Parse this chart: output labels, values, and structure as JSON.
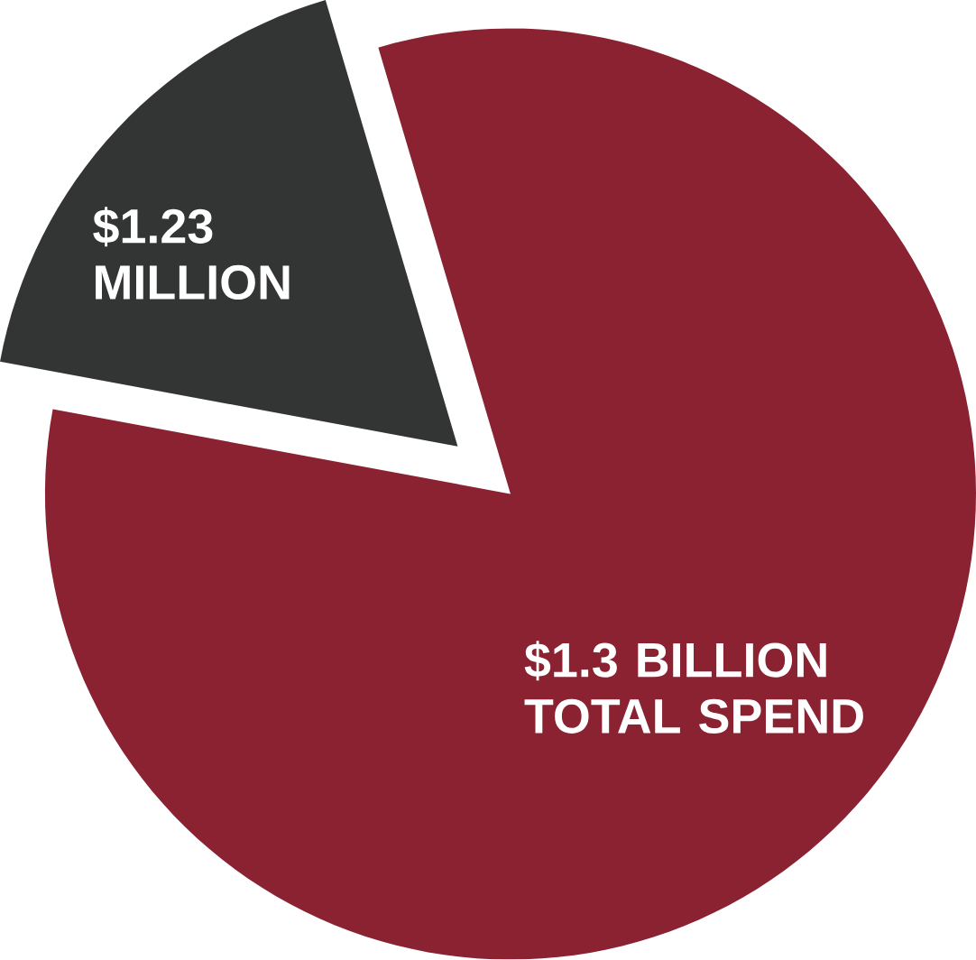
{
  "chart_data": {
    "type": "pie",
    "categories": [
      "$1.23 MILLION",
      "$1.3 BILLION TOTAL SPEND"
    ],
    "values": [
      17.5,
      82.5
    ],
    "colors": [
      "#333535",
      "#8a2232"
    ]
  }
}
